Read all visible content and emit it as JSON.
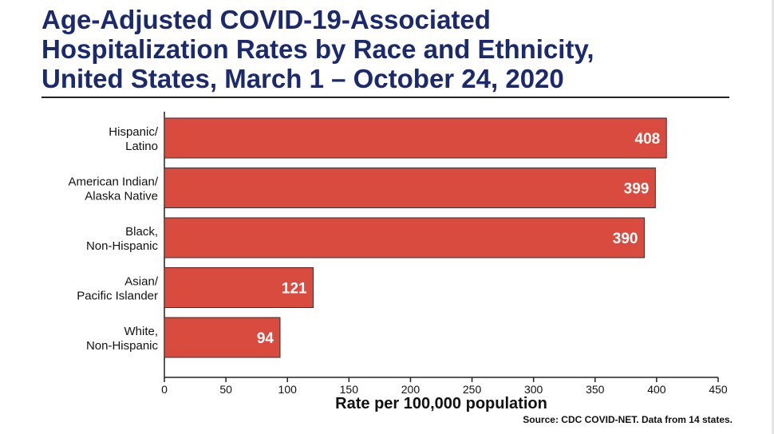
{
  "title_lines": [
    "Age-Adjusted COVID-19-Associated",
    "Hospitalization Rates by Race and Ethnicity,",
    "United States, March 1 – October 24, 2020"
  ],
  "source": "Source: CDC COVID-NET. Data from 14 states.",
  "colors": {
    "bar": "#d94a3f",
    "bar_stroke": "#333333",
    "title": "#1a2a6c",
    "label_text": "#ffffff"
  },
  "chart_data": {
    "type": "bar",
    "orientation": "horizontal",
    "title": "Age-Adjusted COVID-19-Associated Hospitalization Rates by Race and Ethnicity, United States, March 1 – October 24, 2020",
    "categories": [
      [
        "Hispanic/",
        "Latino"
      ],
      [
        "American Indian/",
        "Alaska Native"
      ],
      [
        "Black,",
        "Non-Hispanic"
      ],
      [
        "Asian/",
        "Pacific Islander"
      ],
      [
        "White,",
        "Non-Hispanic"
      ]
    ],
    "values": [
      408,
      399,
      390,
      121,
      94
    ],
    "xlabel": "Rate per 100,000 population",
    "ylabel": "",
    "xlim": [
      0,
      450
    ],
    "xticks": [
      "0",
      "50",
      "100",
      "150",
      "200",
      "250",
      "300",
      "350",
      "400",
      "450"
    ],
    "grid": false,
    "data_labels": true
  }
}
